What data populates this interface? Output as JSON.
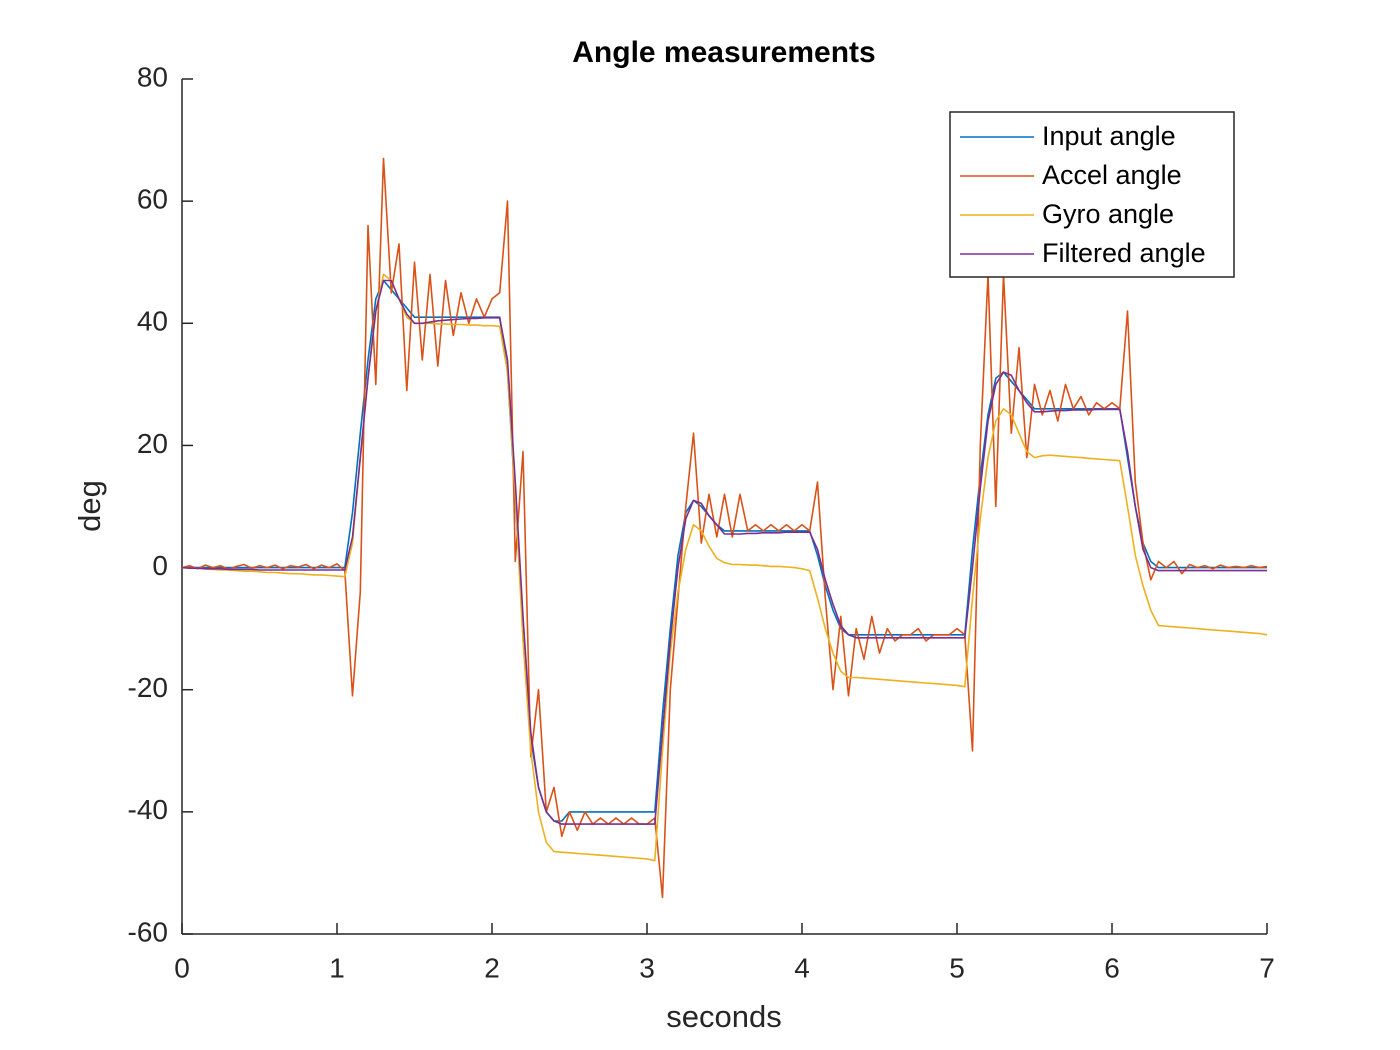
{
  "chart_data": {
    "type": "line",
    "title": "Angle measurements",
    "x_label": "seconds",
    "y_label": "deg",
    "xlim": [
      0,
      7
    ],
    "xticks": [
      0,
      1,
      2,
      3,
      4,
      5,
      6,
      7
    ],
    "ylim": [
      -60,
      80
    ],
    "yticks": [
      -60,
      -40,
      -20,
      0,
      20,
      40,
      60,
      80
    ],
    "grid": false,
    "legend": "northeast",
    "x": [
      0,
      0.05,
      0.1,
      0.15,
      0.2,
      0.25,
      0.3,
      0.35,
      0.4,
      0.45,
      0.5,
      0.55,
      0.6,
      0.65,
      0.7,
      0.75,
      0.8,
      0.85,
      0.9,
      0.95,
      1,
      1.05,
      1.1,
      1.15,
      1.2,
      1.25,
      1.3,
      1.35,
      1.4,
      1.45,
      1.5,
      1.55,
      1.6,
      1.65,
      1.7,
      1.75,
      1.8,
      1.85,
      1.9,
      1.95,
      2,
      2.05,
      2.1,
      2.15,
      2.2,
      2.25,
      2.3,
      2.35,
      2.4,
      2.45,
      2.5,
      2.55,
      2.6,
      2.65,
      2.7,
      2.75,
      2.8,
      2.85,
      2.9,
      2.95,
      3,
      3.05,
      3.1,
      3.15,
      3.2,
      3.25,
      3.3,
      3.35,
      3.4,
      3.45,
      3.5,
      3.55,
      3.6,
      3.65,
      3.7,
      3.75,
      3.8,
      3.85,
      3.9,
      3.95,
      4,
      4.05,
      4.1,
      4.15,
      4.2,
      4.25,
      4.3,
      4.35,
      4.4,
      4.45,
      4.5,
      4.55,
      4.6,
      4.65,
      4.7,
      4.75,
      4.8,
      4.85,
      4.9,
      4.95,
      5,
      5.05,
      5.1,
      5.15,
      5.2,
      5.25,
      5.3,
      5.35,
      5.4,
      5.45,
      5.5,
      5.55,
      5.6,
      5.65,
      5.7,
      5.75,
      5.8,
      5.85,
      5.9,
      5.95,
      6,
      6.05,
      6.1,
      6.15,
      6.2,
      6.25,
      6.3,
      6.35,
      6.4,
      6.45,
      6.5,
      6.55,
      6.6,
      6.65,
      6.7,
      6.75,
      6.8,
      6.85,
      6.9,
      6.95,
      7
    ],
    "series": [
      {
        "name": "Input angle",
        "color": "#0072BD",
        "values": [
          0,
          0,
          0,
          0,
          0,
          0,
          0,
          0,
          0,
          0,
          0,
          0,
          0,
          0,
          0,
          0,
          0,
          0,
          0,
          0,
          0,
          0,
          9,
          22,
          34,
          44,
          47,
          45.5,
          44,
          42.5,
          41,
          41,
          41,
          41,
          41,
          41,
          41,
          41,
          41,
          41,
          41,
          41,
          32,
          11,
          -10,
          -28,
          -36,
          -40,
          -41.5,
          -41.5,
          -40,
          -40,
          -40,
          -40,
          -40,
          -40,
          -40,
          -40,
          -40,
          -40,
          -40,
          -40,
          -24,
          -10,
          2,
          9,
          11,
          10,
          8.5,
          7,
          6,
          6,
          6,
          6,
          6,
          6,
          6,
          6,
          6,
          6,
          6,
          6,
          2,
          -3,
          -7,
          -10,
          -11,
          -11,
          -11,
          -11,
          -11,
          -11,
          -11,
          -11,
          -11,
          -11,
          -11,
          -11,
          -11,
          -11,
          -11,
          -11,
          3,
          15,
          25,
          31,
          32,
          30.5,
          29,
          27.5,
          26,
          26,
          26,
          26,
          26,
          26,
          26,
          26,
          26,
          26,
          26,
          26,
          18,
          10,
          4,
          1,
          0,
          0,
          0,
          0,
          0,
          0,
          0,
          0,
          0,
          0,
          0,
          0,
          0,
          0,
          0
        ]
      },
      {
        "name": "Accel angle",
        "color": "#D95319",
        "values": [
          0,
          0.3,
          -0.2,
          0.4,
          0,
          0.3,
          -0.3,
          0.2,
          0.5,
          -0.1,
          0.3,
          0,
          0.4,
          -0.2,
          0.3,
          0.1,
          0.5,
          -0.2,
          0.4,
          0,
          0.6,
          -0.5,
          -21,
          -4,
          56,
          30,
          67,
          45,
          53,
          29,
          50,
          34,
          48,
          33,
          47,
          38,
          45,
          40,
          44,
          41,
          44,
          45,
          60,
          1,
          19,
          -31,
          -20,
          -40,
          -36,
          -44,
          -40,
          -43,
          -40,
          -42,
          -41,
          -42,
          -41,
          -42,
          -41,
          -42,
          -42,
          -41,
          -54,
          -20,
          -5,
          10,
          22,
          4,
          12,
          5,
          12,
          5,
          12,
          6,
          7,
          6,
          7,
          6,
          7,
          6,
          7,
          6,
          14,
          -5,
          -20,
          -8,
          -21,
          -10,
          -15,
          -8,
          -14,
          -10,
          -12,
          -11,
          -11,
          -10,
          -12,
          -11,
          -11,
          -11,
          -10,
          -11,
          -30,
          20,
          48,
          10,
          48,
          22,
          36,
          18,
          30,
          25,
          29,
          24,
          30,
          26,
          28,
          25,
          27,
          26,
          27,
          26,
          42,
          14,
          4,
          -2,
          1,
          0,
          1,
          -1,
          0.5,
          0,
          0.3,
          -0.2,
          0.4,
          0,
          0.2,
          0,
          0.3,
          0,
          0.2
        ]
      },
      {
        "name": "Gyro angle",
        "color": "#EDB120",
        "values": [
          0,
          -0.1,
          -0.1,
          -0.2,
          -0.3,
          -0.4,
          -0.4,
          -0.5,
          -0.6,
          -0.6,
          -0.7,
          -0.8,
          -0.8,
          -0.9,
          -1,
          -1,
          -1.1,
          -1.2,
          -1.2,
          -1.3,
          -1.4,
          -1.5,
          4,
          18,
          31,
          42,
          48,
          47,
          44,
          41,
          40,
          40,
          40,
          39.9,
          39.9,
          39.8,
          39.8,
          39.7,
          39.7,
          39.6,
          39.6,
          39.5,
          32,
          12,
          -12,
          -30,
          -40,
          -45,
          -46.5,
          -46.6,
          -46.7,
          -46.8,
          -46.9,
          -47,
          -47.1,
          -47.2,
          -47.3,
          -47.4,
          -47.5,
          -47.6,
          -47.7,
          -48,
          -30,
          -14,
          -4,
          3,
          7,
          6,
          3.5,
          1.5,
          0.8,
          0.5,
          0.5,
          0.4,
          0.4,
          0.3,
          0.2,
          0.2,
          0.1,
          0,
          -0.2,
          -0.5,
          -5,
          -10,
          -14,
          -17,
          -18,
          -18,
          -18.1,
          -18.2,
          -18.3,
          -18.4,
          -18.5,
          -18.6,
          -18.7,
          -18.8,
          -18.9,
          -19,
          -19.1,
          -19.2,
          -19.3,
          -19.5,
          -5,
          8,
          18,
          24,
          26,
          25,
          22,
          19,
          18,
          18.3,
          18.4,
          18.3,
          18.2,
          18.1,
          18,
          17.9,
          17.8,
          17.7,
          17.6,
          17.5,
          10,
          2,
          -3,
          -7,
          -9.5,
          -9.6,
          -9.7,
          -9.8,
          -9.9,
          -10,
          -10.1,
          -10.2,
          -10.3,
          -10.4,
          -10.5,
          -10.6,
          -10.7,
          -10.8,
          -11
        ]
      },
      {
        "name": "Filtered angle",
        "color": "#7E2F8E",
        "values": [
          0,
          -0.1,
          -0.1,
          -0.2,
          -0.2,
          -0.2,
          -0.3,
          -0.3,
          -0.3,
          -0.3,
          -0.4,
          -0.4,
          -0.4,
          -0.4,
          -0.4,
          -0.4,
          -0.4,
          -0.4,
          -0.4,
          -0.4,
          -0.4,
          -0.4,
          5,
          18,
          31,
          42,
          47,
          47,
          44,
          41.5,
          40,
          40,
          40.2,
          40.4,
          40.5,
          40.6,
          40.7,
          40.8,
          40.8,
          40.9,
          40.9,
          40.9,
          34,
          14,
          -8,
          -27,
          -36,
          -40,
          -41.5,
          -42,
          -42,
          -42,
          -42,
          -42,
          -42,
          -42,
          -42,
          -42,
          -42,
          -42,
          -42,
          -42,
          -27,
          -12,
          0,
          8,
          11,
          10.5,
          8.5,
          7,
          5.5,
          5.5,
          5.5,
          5.6,
          5.6,
          5.7,
          5.7,
          5.7,
          5.8,
          5.8,
          5.8,
          5.8,
          3,
          -2,
          -6,
          -9.5,
          -11,
          -11.5,
          -11.5,
          -11.5,
          -11.5,
          -11.5,
          -11.5,
          -11.5,
          -11.5,
          -11.5,
          -11.5,
          -11.5,
          -11.5,
          -11.5,
          -11.5,
          -11.5,
          0,
          13,
          24,
          30,
          32,
          31.5,
          29,
          27,
          25.5,
          25.5,
          25.6,
          25.7,
          25.7,
          25.8,
          25.8,
          25.8,
          25.9,
          25.9,
          25.9,
          25.9,
          19,
          10,
          3,
          0,
          -0.5,
          -0.5,
          -0.5,
          -0.5,
          -0.5,
          -0.5,
          -0.5,
          -0.5,
          -0.5,
          -0.5,
          -0.5,
          -0.5,
          -0.5,
          -0.5,
          -0.5
        ]
      }
    ]
  }
}
